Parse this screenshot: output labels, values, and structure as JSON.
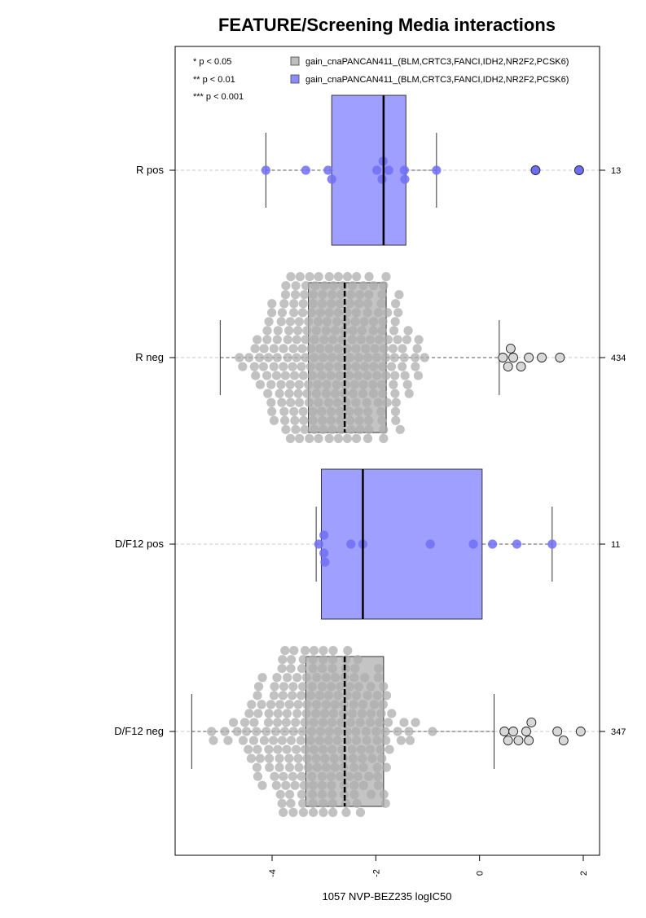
{
  "chart_data": {
    "type": "box",
    "title": "FEATURE/Screening Media interactions",
    "xlabel": "1057 NVP-BEZ235 logIC50",
    "ylabel": "",
    "xlim": [
      -5.9,
      2.2
    ],
    "xticks": [
      {
        "value": -4,
        "label": "-4"
      },
      {
        "value": -2,
        "label": "-2"
      },
      {
        "value": 0,
        "label": "0"
      },
      {
        "value": 2,
        "label": "2"
      }
    ],
    "significance_legend": [
      "* p < 0.05",
      "** p < 0.01",
      "*** p < 0.001"
    ],
    "legend_position": "top-right",
    "legend": [
      {
        "label": "gain_cnaPANCAN411_(BLM,CRTC3,FANCI,IDH2,NR2F2,PCSK6)",
        "color": "#bebebe"
      },
      {
        "label": "gain_cnaPANCAN411_(BLM,CRTC3,FANCI,IDH2,NR2F2,PCSK6)",
        "color": "#8c8cff"
      }
    ],
    "colors": {
      "pos_box": "#9f9fff",
      "pos_point": "#6e6ef5",
      "neg_box": "#c4c4c4",
      "neg_point": "#adadad"
    },
    "groups": [
      {
        "label": "R pos",
        "n": "13",
        "status": "pos",
        "q1": -2.85,
        "median": -1.85,
        "q3": -1.42,
        "whisker_low": -4.12,
        "whisker_high": -0.83,
        "points": [
          -4.12,
          -3.35,
          -2.92,
          -2.85,
          -1.98,
          -1.88,
          -1.86,
          -1.75,
          -1.45,
          -1.44,
          -0.83
        ],
        "outliers": [
          1.08,
          1.92
        ],
        "spread": 1
      },
      {
        "label": "R neg",
        "n": "434",
        "status": "neg",
        "q1": -3.3,
        "median": -2.6,
        "q3": -1.8,
        "whisker_low": -5.0,
        "whisker_high": 0.38,
        "points": [],
        "outliers": [
          0.45,
          0.55,
          0.6,
          0.65,
          0.8,
          0.95,
          1.2,
          1.55
        ],
        "spread": 5
      },
      {
        "label": "D/F12 pos",
        "n": "11",
        "status": "pos",
        "q1": -3.05,
        "median": -2.25,
        "q3": 0.05,
        "whisker_low": -3.15,
        "whisker_high": 1.4,
        "points": [
          -3.1,
          -3.0,
          -3.0,
          -2.98,
          -2.48,
          -2.25,
          -0.95,
          -0.12,
          0.25,
          0.72,
          1.4
        ],
        "outliers": [],
        "spread": 1
      },
      {
        "label": "D/F12 neg",
        "n": "347",
        "status": "neg",
        "q1": -3.35,
        "median": -2.6,
        "q3": -1.85,
        "whisker_low": -5.55,
        "whisker_high": 0.28,
        "points": [],
        "outliers": [
          0.48,
          0.55,
          0.65,
          0.75,
          0.9,
          0.95,
          1.0,
          1.5,
          1.62,
          1.95
        ],
        "spread": 5
      }
    ]
  }
}
